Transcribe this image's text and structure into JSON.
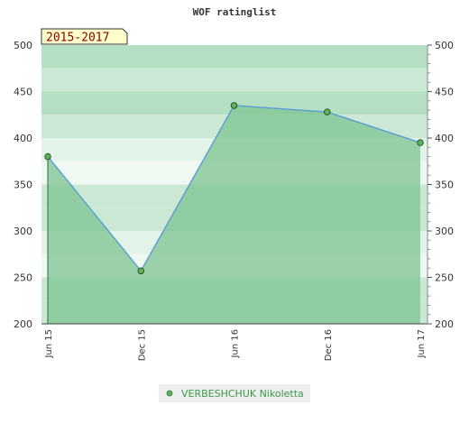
{
  "chart_data": {
    "type": "line",
    "title": "WOF ratinglist",
    "period_label": "2015-2017",
    "categories": [
      "Jun 15",
      "Dec 15",
      "Jun 16",
      "Dec 16",
      "Jun 17"
    ],
    "series": [
      {
        "name": "VERBESHCHUK Nikoletta",
        "values": [
          380,
          257,
          435,
          428,
          395
        ]
      }
    ],
    "ylim": [
      200,
      500
    ],
    "yticks": [
      200,
      250,
      300,
      350,
      400,
      450,
      500
    ],
    "grid": true,
    "legend": "bottom",
    "colors": {
      "line": "#5b9bd5",
      "marker": "#5fb35f",
      "area": "#7dc492",
      "band_colors": [
        "#b5dfc2",
        "#cbe8d4",
        "#e2f3e7",
        "#f0f8f2"
      ],
      "period_bg": "#ffffcc"
    }
  }
}
